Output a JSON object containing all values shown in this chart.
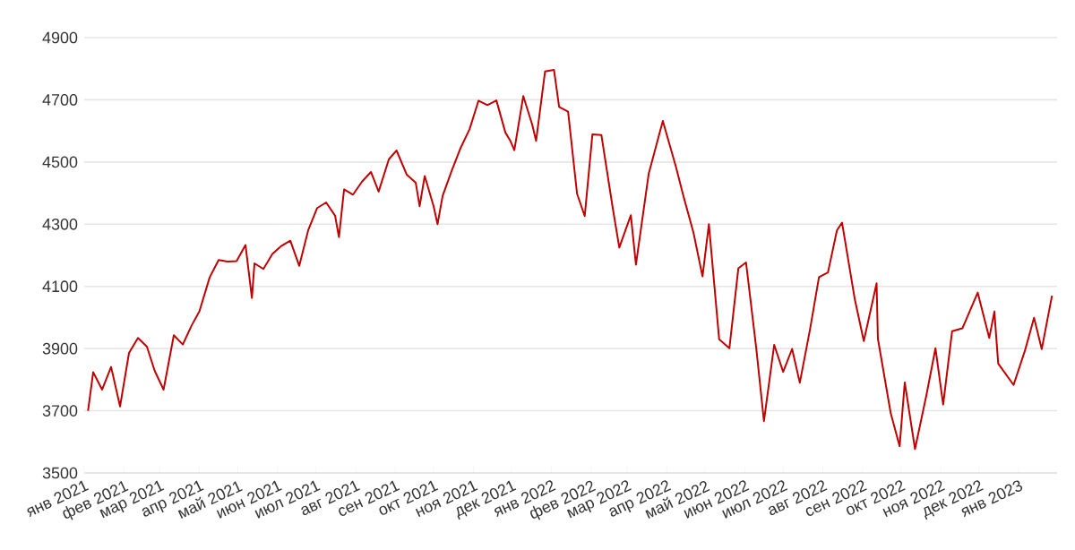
{
  "chart_data": {
    "type": "line",
    "grid": "y",
    "marker": "none",
    "line_style": "solid",
    "xlim": [
      "2021-01-01",
      "2023-01-31"
    ],
    "ylim": [
      3500,
      4900
    ],
    "yticks": [
      3500,
      3700,
      3900,
      4100,
      4300,
      4500,
      4700,
      4900
    ],
    "xticks": [
      {
        "value": "2021-01-01",
        "label": "янв 2021"
      },
      {
        "value": "2021-02-01",
        "label": "фев 2021"
      },
      {
        "value": "2021-03-01",
        "label": "мар 2021"
      },
      {
        "value": "2021-04-01",
        "label": "апр 2021"
      },
      {
        "value": "2021-05-01",
        "label": "май 2021"
      },
      {
        "value": "2021-06-01",
        "label": "июн 2021"
      },
      {
        "value": "2021-07-01",
        "label": "июл 2021"
      },
      {
        "value": "2021-08-01",
        "label": "авг 2021"
      },
      {
        "value": "2021-09-01",
        "label": "сен 2021"
      },
      {
        "value": "2021-10-01",
        "label": "окт 2021"
      },
      {
        "value": "2021-11-01",
        "label": "ноя 2021"
      },
      {
        "value": "2021-12-01",
        "label": "дек 2021"
      },
      {
        "value": "2022-01-01",
        "label": "янв 2022"
      },
      {
        "value": "2022-02-01",
        "label": "фев 2022"
      },
      {
        "value": "2022-03-01",
        "label": "мар 2022"
      },
      {
        "value": "2022-04-01",
        "label": "апр 2022"
      },
      {
        "value": "2022-05-01",
        "label": "май 2022"
      },
      {
        "value": "2022-06-01",
        "label": "июн 2022"
      },
      {
        "value": "2022-07-01",
        "label": "июл 2022"
      },
      {
        "value": "2022-08-01",
        "label": "авг 2022"
      },
      {
        "value": "2022-09-01",
        "label": "сен 2022"
      },
      {
        "value": "2022-10-01",
        "label": "окт 2022"
      },
      {
        "value": "2022-11-01",
        "label": "ноя 2022"
      },
      {
        "value": "2022-12-01",
        "label": "дек 2022"
      },
      {
        "value": "2023-01-01",
        "label": "янв 2023"
      }
    ],
    "x": [
      "2021-01-04",
      "2021-01-08",
      "2021-01-15",
      "2021-01-22",
      "2021-01-29",
      "2021-02-05",
      "2021-02-12",
      "2021-02-19",
      "2021-02-25",
      "2021-03-04",
      "2021-03-12",
      "2021-03-19",
      "2021-03-26",
      "2021-04-01",
      "2021-04-09",
      "2021-04-16",
      "2021-04-23",
      "2021-04-30",
      "2021-05-07",
      "2021-05-12",
      "2021-05-14",
      "2021-05-21",
      "2021-05-28",
      "2021-06-04",
      "2021-06-11",
      "2021-06-18",
      "2021-06-25",
      "2021-07-02",
      "2021-07-09",
      "2021-07-16",
      "2021-07-19",
      "2021-07-23",
      "2021-07-30",
      "2021-08-06",
      "2021-08-13",
      "2021-08-19",
      "2021-08-27",
      "2021-09-02",
      "2021-09-10",
      "2021-09-17",
      "2021-09-20",
      "2021-09-24",
      "2021-10-01",
      "2021-10-04",
      "2021-10-08",
      "2021-10-15",
      "2021-10-22",
      "2021-10-29",
      "2021-11-05",
      "2021-11-12",
      "2021-11-19",
      "2021-11-26",
      "2021-11-30",
      "2021-12-03",
      "2021-12-10",
      "2021-12-17",
      "2021-12-20",
      "2021-12-27",
      "2022-01-03",
      "2022-01-07",
      "2022-01-14",
      "2022-01-21",
      "2022-01-27",
      "2022-02-02",
      "2022-02-09",
      "2022-02-18",
      "2022-02-23",
      "2022-03-04",
      "2022-03-08",
      "2022-03-18",
      "2022-03-29",
      "2022-04-08",
      "2022-04-14",
      "2022-04-22",
      "2022-04-29",
      "2022-05-04",
      "2022-05-12",
      "2022-05-20",
      "2022-05-27",
      "2022-06-02",
      "2022-06-10",
      "2022-06-16",
      "2022-06-24",
      "2022-07-01",
      "2022-07-08",
      "2022-07-14",
      "2022-07-22",
      "2022-07-29",
      "2022-08-05",
      "2022-08-12",
      "2022-08-16",
      "2022-08-26",
      "2022-09-02",
      "2022-09-12",
      "2022-09-13",
      "2022-09-23",
      "2022-09-30",
      "2022-10-04",
      "2022-10-12",
      "2022-10-21",
      "2022-10-28",
      "2022-11-03",
      "2022-11-10",
      "2022-11-18",
      "2022-11-30",
      "2022-12-09",
      "2022-12-13",
      "2022-12-16",
      "2022-12-28",
      "2023-01-06",
      "2023-01-13",
      "2023-01-19",
      "2023-01-27"
    ],
    "series": [
      {
        "color": "#c00000",
        "values": [
          3700,
          3824,
          3768,
          3841,
          3714,
          3886,
          3934,
          3906,
          3829,
          3768,
          3943,
          3913,
          3975,
          4020,
          4129,
          4185,
          4180,
          4181,
          4233,
          4063,
          4174,
          4156,
          4204,
          4230,
          4247,
          4166,
          4281,
          4352,
          4370,
          4327,
          4258,
          4412,
          4395,
          4437,
          4468,
          4405,
          4509,
          4537,
          4459,
          4433,
          4358,
          4455,
          4357,
          4300,
          4391,
          4471,
          4545,
          4605,
          4697,
          4683,
          4698,
          4595,
          4567,
          4538,
          4712,
          4620,
          4568,
          4791,
          4796,
          4677,
          4662,
          4398,
          4326,
          4589,
          4587,
          4349,
          4225,
          4329,
          4170,
          4463,
          4632,
          4488,
          4392,
          4272,
          4132,
          4300,
          3930,
          3901,
          4158,
          4177,
          3901,
          3667,
          3912,
          3825,
          3899,
          3790,
          3962,
          4130,
          4145,
          4280,
          4305,
          4058,
          3924,
          4110,
          3932,
          3693,
          3586,
          3791,
          3577,
          3752,
          3901,
          3720,
          3956,
          3965,
          4080,
          3934,
          4019,
          3852,
          3783,
          3895,
          3999,
          3898,
          4070
        ]
      }
    ]
  }
}
